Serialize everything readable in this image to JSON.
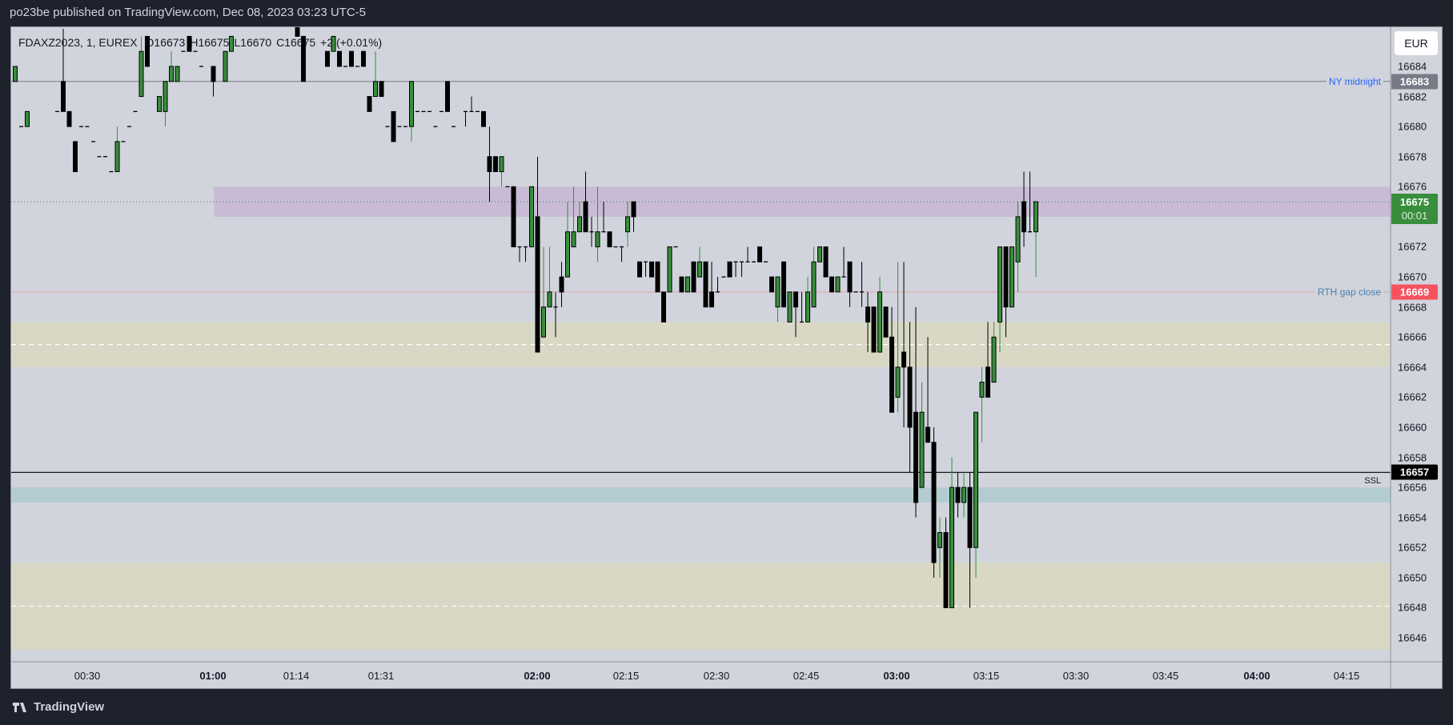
{
  "header": {
    "published": "po23be published on TradingView.com, Dec 08, 2023 03:23 UTC-5"
  },
  "legend": {
    "symbol": "FDAXZ2023, 1, EUREX",
    "open": "O16673",
    "high": "H16675",
    "low": "L16670",
    "close": "C16675",
    "change": "+2 (+0.01%)"
  },
  "currency_button": "EUR",
  "footer": {
    "brand": "TradingView"
  },
  "colors": {
    "up": "#388e3c",
    "down": "#000000",
    "purple_zone": "#c9bbd6",
    "yellow_zone": "#d8d8c5",
    "teal_zone": "#b3ccd0",
    "ny_midnight": "#787b86",
    "rth_gap": "#e3a3ab",
    "price_tag_green": "#388e3c",
    "price_tag_red": "#f7525f"
  },
  "chart_data": {
    "type": "candlestick",
    "symbol": "FDAXZ2023",
    "interval": "1",
    "exchange": "EUREX",
    "ylim": [
      16644.6,
      16686.6
    ],
    "y_ticks": [
      "16684",
      "16682",
      "16680",
      "16678",
      "16676",
      "16672",
      "16670",
      "16668",
      "16666",
      "16664",
      "16662",
      "16660",
      "16658",
      "16656",
      "16654",
      "16652",
      "16650",
      "16648",
      "16646"
    ],
    "x_ticks": [
      {
        "label": "00:30",
        "bold": false
      },
      {
        "label": "01:00",
        "bold": true
      },
      {
        "label": "01:14",
        "bold": false
      },
      {
        "label": "01:31",
        "bold": false
      },
      {
        "label": "02:00",
        "bold": true
      },
      {
        "label": "02:15",
        "bold": false
      },
      {
        "label": "02:30",
        "bold": false
      },
      {
        "label": "02:45",
        "bold": false
      },
      {
        "label": "03:00",
        "bold": true
      },
      {
        "label": "03:15",
        "bold": false
      },
      {
        "label": "03:30",
        "bold": false
      },
      {
        "label": "03:45",
        "bold": false
      },
      {
        "label": "04:00",
        "bold": true
      },
      {
        "label": "04:15",
        "bold": false
      }
    ],
    "candles_ohlc": [
      [
        16683,
        16684,
        16683,
        16684
      ],
      [
        16680,
        16680,
        16680,
        16680
      ],
      [
        16680,
        16681,
        16680,
        16681
      ],
      null,
      null,
      null,
      null,
      [
        16681,
        16681,
        16681,
        16681
      ],
      [
        16683,
        16686.5,
        16681,
        16681
      ],
      [
        16681,
        16681,
        16680,
        16680
      ],
      [
        16679,
        16679,
        16677,
        16677
      ],
      [
        16680,
        16680,
        16680,
        16680
      ],
      [
        16680,
        16680,
        16680,
        16680
      ],
      [
        16679,
        16679,
        16679,
        16679
      ],
      [
        16678,
        16678,
        16678,
        16678
      ],
      [
        16678,
        16678,
        16678,
        16678
      ],
      [
        16677,
        16677,
        16677,
        16677
      ],
      [
        16677,
        16680,
        16677,
        16679
      ],
      [
        16679,
        16679,
        16679,
        16679
      ],
      [
        16680,
        16680,
        16680,
        16680
      ],
      [
        16681,
        16681,
        16681,
        16681
      ],
      [
        16682,
        16686,
        16682,
        16685
      ],
      [
        16686,
        16686,
        16684,
        16684
      ],
      null,
      [
        16681,
        16682,
        16681,
        16682
      ],
      [
        16681,
        16683,
        16680,
        16683
      ],
      [
        16683,
        16685,
        16683,
        16684
      ],
      [
        16683,
        16684,
        16683,
        16684
      ],
      [
        16685,
        16685,
        16685,
        16685
      ],
      [
        16686,
        16686,
        16685,
        16685
      ],
      [
        16685,
        16685,
        16685,
        16685
      ],
      [
        16684,
        16684,
        16684,
        16684
      ],
      null,
      [
        16684,
        16684,
        16682,
        16683
      ],
      null,
      [
        16683,
        16685,
        16683,
        16685
      ],
      [
        16685,
        16686,
        16685,
        16686
      ],
      null,
      null,
      null,
      null,
      null,
      null,
      null,
      null,
      null,
      null,
      [
        16687,
        16687,
        16686,
        16686
      ],
      [
        16686,
        16686,
        16683,
        16683
      ],
      null,
      null,
      null,
      [
        16685,
        16685,
        16684,
        16684
      ],
      [
        16685,
        16686,
        16685,
        16686
      ],
      [
        16685,
        16685,
        16684,
        16684
      ],
      [
        16684,
        16684,
        16684,
        16684
      ],
      [
        16685,
        16685,
        16684,
        16684
      ],
      [
        16684,
        16684,
        16684,
        16684
      ],
      [
        16685,
        16685,
        16684,
        16684
      ],
      [
        16682,
        16682,
        16681,
        16681
      ],
      [
        16682,
        16685,
        16682,
        16683
      ],
      [
        16683,
        16683,
        16682,
        16682
      ],
      [
        16680,
        16680,
        16680,
        16680
      ],
      [
        16681,
        16681,
        16679,
        16679
      ],
      [
        16680,
        16680,
        16680,
        16680
      ],
      [
        16680,
        16680,
        16680,
        16680
      ],
      [
        16680,
        16683,
        16679,
        16683
      ],
      [
        16681,
        16681,
        16681,
        16681
      ],
      [
        16681,
        16681,
        16681,
        16681
      ],
      [
        16681,
        16681,
        16681,
        16681
      ],
      [
        16680,
        16680,
        16680,
        16680
      ],
      [
        16681,
        16681,
        16681,
        16681
      ],
      [
        16683,
        16683,
        16681,
        16681
      ],
      [
        16680,
        16680,
        16680,
        16680
      ],
      null,
      [
        16681,
        16681,
        16680,
        16681
      ],
      [
        16681,
        16682,
        16681,
        16681
      ],
      [
        16681,
        16681,
        16681,
        16681
      ],
      [
        16681,
        16681,
        16680,
        16680
      ],
      [
        16678,
        16680,
        16675,
        16677
      ],
      [
        16678,
        16678,
        16677,
        16677
      ],
      [
        16677,
        16678,
        16676,
        16678
      ],
      [
        16676,
        16676,
        16676,
        16676
      ],
      [
        16676,
        16676,
        16672,
        16672
      ],
      [
        16672,
        16672,
        16671,
        16672
      ],
      [
        16672,
        16672,
        16671,
        16672
      ],
      [
        16672,
        16676,
        16672,
        16676
      ],
      [
        16674,
        16678,
        16665,
        16665
      ],
      [
        16666,
        16672,
        16666,
        16668
      ],
      [
        16668,
        16672,
        16668,
        16669
      ],
      [
        16668,
        16669,
        16666,
        16668
      ],
      [
        16670,
        16671,
        16668,
        16669
      ],
      [
        16670,
        16675,
        16670,
        16673
      ],
      [
        16672,
        16676,
        16672,
        16673
      ],
      [
        16673,
        16675,
        16673,
        16674
      ],
      [
        16675,
        16677,
        16673,
        16673
      ],
      [
        16673,
        16674,
        16672,
        16673
      ],
      [
        16672,
        16676,
        16671,
        16673
      ],
      [
        16673,
        16675,
        16673,
        16673
      ],
      [
        16673,
        16673,
        16672,
        16672
      ],
      [
        16672,
        16672,
        16672,
        16672
      ],
      [
        16672,
        16672,
        16671,
        16672
      ],
      [
        16673,
        16675,
        16672,
        16674
      ],
      [
        16675,
        16675,
        16673,
        16674
      ],
      [
        16671,
        16671,
        16670,
        16670
      ],
      [
        16671,
        16671,
        16670,
        16671
      ],
      [
        16671,
        16671,
        16670,
        16670
      ],
      [
        16671,
        16671,
        16669,
        16669
      ],
      [
        16669,
        16669,
        16667,
        16667
      ],
      [
        16669,
        16672,
        16669,
        16672
      ],
      [
        16672,
        16672,
        16672,
        16672
      ],
      [
        16670,
        16670,
        16669,
        16669
      ],
      [
        16669,
        16670,
        16669,
        16670
      ],
      [
        16671,
        16671,
        16669,
        16669
      ],
      [
        16670,
        16672,
        16670,
        16671
      ],
      [
        16671,
        16671,
        16668,
        16668
      ],
      [
        16669,
        16671,
        16668,
        16668
      ],
      [
        16669,
        16670,
        16669,
        16669
      ],
      [
        16670,
        16670,
        16670,
        16670
      ],
      [
        16671,
        16671,
        16670,
        16670
      ],
      [
        16671,
        16671,
        16670,
        16671
      ],
      [
        16671,
        16671,
        16670,
        16671
      ],
      [
        16671,
        16672,
        16671,
        16671
      ],
      [
        16671,
        16671,
        16671,
        16671
      ],
      [
        16672,
        16672,
        16671,
        16671
      ],
      [
        16671,
        16671,
        16671,
        16671
      ],
      [
        16670,
        16670,
        16669,
        16669
      ],
      [
        16668,
        16670,
        16667,
        16670
      ],
      [
        16671,
        16671,
        16668,
        16668
      ],
      [
        16667,
        16669,
        16667,
        16669
      ],
      [
        16669,
        16669,
        16666,
        16668
      ],
      [
        16667,
        16669,
        16667,
        16667
      ],
      [
        16667,
        16670,
        16667,
        16669
      ],
      [
        16668,
        16672,
        16668,
        16671
      ],
      [
        16671,
        16672,
        16671,
        16672
      ],
      [
        16672,
        16672,
        16670,
        16670
      ],
      [
        16670,
        16670,
        16669,
        16669
      ],
      [
        16669,
        16670,
        16669,
        16670
      ],
      [
        16670,
        16672,
        16670,
        16670
      ],
      [
        16671,
        16671,
        16668,
        16669
      ],
      [
        16669,
        16669,
        16669,
        16669
      ],
      [
        16669,
        16671,
        16668,
        16669
      ],
      [
        16668,
        16669,
        16665,
        16667
      ],
      [
        16668,
        16668,
        16665,
        16665
      ],
      [
        16665,
        16670,
        16665,
        16669
      ],
      [
        16668,
        16668,
        16666,
        16666
      ],
      [
        16666,
        16668,
        16661,
        16661
      ],
      [
        16662,
        16671,
        16661,
        16664
      ],
      [
        16665,
        16671,
        16660,
        16664
      ],
      [
        16664,
        16667,
        16657,
        16660
      ],
      [
        16661,
        16668,
        16654,
        16655
      ],
      [
        16656,
        16663,
        16656,
        16661
      ],
      [
        16660,
        16666,
        16659,
        16659
      ],
      [
        16659,
        16660,
        16650,
        16651
      ],
      [
        16652,
        16654,
        16650,
        16653
      ],
      [
        16653,
        16654,
        16648,
        16648
      ],
      [
        16648,
        16658,
        16648,
        16656
      ],
      [
        16656,
        16657,
        16654,
        16655
      ],
      [
        16655,
        16657,
        16654,
        16656
      ],
      [
        16656,
        16657,
        16648,
        16652
      ],
      [
        16652,
        16661,
        16650,
        16661
      ],
      [
        16662,
        16664,
        16659,
        16663
      ],
      [
        16664,
        16667,
        16662,
        16662
      ],
      [
        16663,
        16667,
        16663,
        16666
      ],
      [
        16667,
        16672,
        16665,
        16672
      ],
      [
        16672,
        16672,
        16666,
        16668
      ],
      [
        16668,
        16672,
        16668,
        16672
      ],
      [
        16671,
        16675,
        16669,
        16674
      ],
      [
        16675,
        16677,
        16672,
        16673
      ],
      [
        16673,
        16677,
        16673,
        16673
      ],
      [
        16673,
        16675,
        16670,
        16675
      ]
    ],
    "zones": [
      {
        "name": "purple",
        "from": 16674,
        "to": 16676
      },
      {
        "name": "yellow-upper",
        "from": 16664,
        "to": 16667,
        "mid": 16665.5
      },
      {
        "name": "teal",
        "from": 16655,
        "to": 16656
      },
      {
        "name": "yellow-lower",
        "from": 16645.2,
        "to": 16651,
        "mid": 16648.1
      }
    ],
    "lines": [
      {
        "label": "NY midnight",
        "price": "16683"
      },
      {
        "label": "RTH gap close",
        "price": "16669"
      },
      {
        "label": "SSL",
        "price": "16657"
      }
    ],
    "last_price": "16675",
    "countdown": "00:01"
  }
}
